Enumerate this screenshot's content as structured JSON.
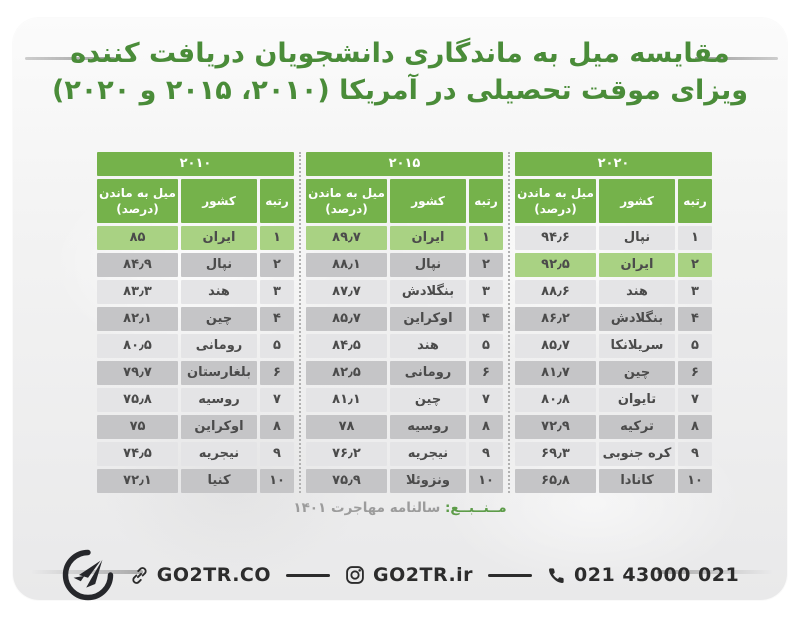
{
  "page": {
    "title_line1": "مقایسه میل به ماندگاری دانشجویان دریافت کننده",
    "title_line2": "ویزای موقت تحصیلی در آمریکا (۲۰۱۰، ۲۰۱۵ و ۲۰۲۰)",
    "title_color": "#4a8c39",
    "header_green": "#75b24b",
    "highlight_green": "#a9d283",
    "row_light": "#e4e4e6",
    "row_dark": "#c5c5c7"
  },
  "source": {
    "label": "مــنــبــع:",
    "text": "سالنامه مهاجرت ۱۴۰۱"
  },
  "footer": {
    "website": "GO2TR.CO",
    "instagram": "GO2TR.ir",
    "phone": "021 43000 021",
    "icons": [
      "go2tr-logo",
      "link-icon",
      "instagram-icon",
      "phone-icon"
    ]
  },
  "chart_data": {
    "type": "table",
    "title": "مقایسه میل به ماندگاری دانشجویان دریافت کننده ویزای موقت تحصیلی در آمریکا (۲۰۱۰، ۲۰۱۵ و ۲۰۲۰)",
    "columns": [
      "رتبه",
      "کشور",
      "میل به ماندن (درصد)"
    ],
    "rank_header": "رتبه",
    "country_header": "کشور",
    "value_header_line1": "میل به ماندن",
    "value_header_line2": "(درصد)",
    "layout_note": "three year tables shown right-to-left: 2020, 2015, 2010",
    "tables": [
      {
        "year": "۲۰۲۰",
        "highlight_row_index": 1,
        "rows": [
          {
            "rank": "۱",
            "country": "نپال",
            "value": "۹۴٫۶"
          },
          {
            "rank": "۲",
            "country": "ایران",
            "value": "۹۲٫۵"
          },
          {
            "rank": "۳",
            "country": "هند",
            "value": "۸۸٫۶"
          },
          {
            "rank": "۴",
            "country": "بنگلادش",
            "value": "۸۶٫۲"
          },
          {
            "rank": "۵",
            "country": "سریلانکا",
            "value": "۸۵٫۷"
          },
          {
            "rank": "۶",
            "country": "چین",
            "value": "۸۱٫۷"
          },
          {
            "rank": "۷",
            "country": "تایوان",
            "value": "۸۰٫۸"
          },
          {
            "rank": "۸",
            "country": "ترکیه",
            "value": "۷۲٫۹"
          },
          {
            "rank": "۹",
            "country": "کره جنوبی",
            "value": "۶۹٫۳"
          },
          {
            "rank": "۱۰",
            "country": "کانادا",
            "value": "۶۵٫۸"
          }
        ]
      },
      {
        "year": "۲۰۱۵",
        "highlight_row_index": 0,
        "rows": [
          {
            "rank": "۱",
            "country": "ایران",
            "value": "۸۹٫۷"
          },
          {
            "rank": "۲",
            "country": "نپال",
            "value": "۸۸٫۱"
          },
          {
            "rank": "۳",
            "country": "بنگلادش",
            "value": "۸۷٫۷"
          },
          {
            "rank": "۴",
            "country": "اوکراین",
            "value": "۸۵٫۷"
          },
          {
            "rank": "۵",
            "country": "هند",
            "value": "۸۴٫۵"
          },
          {
            "rank": "۶",
            "country": "رومانی",
            "value": "۸۲٫۵"
          },
          {
            "rank": "۷",
            "country": "چین",
            "value": "۸۱٫۱"
          },
          {
            "rank": "۸",
            "country": "روسیه",
            "value": "۷۸"
          },
          {
            "rank": "۹",
            "country": "نیجریه",
            "value": "۷۶٫۲"
          },
          {
            "rank": "۱۰",
            "country": "ونزوئلا",
            "value": "۷۵٫۹"
          }
        ]
      },
      {
        "year": "۲۰۱۰",
        "highlight_row_index": 0,
        "rows": [
          {
            "rank": "۱",
            "country": "ایران",
            "value": "۸۵"
          },
          {
            "rank": "۲",
            "country": "نپال",
            "value": "۸۴٫۹"
          },
          {
            "rank": "۳",
            "country": "هند",
            "value": "۸۳٫۳"
          },
          {
            "rank": "۴",
            "country": "چین",
            "value": "۸۲٫۱"
          },
          {
            "rank": "۵",
            "country": "رومانی",
            "value": "۸۰٫۵"
          },
          {
            "rank": "۶",
            "country": "بلغارستان",
            "value": "۷۹٫۷"
          },
          {
            "rank": "۷",
            "country": "روسیه",
            "value": "۷۵٫۸"
          },
          {
            "rank": "۸",
            "country": "اوکراین",
            "value": "۷۵"
          },
          {
            "rank": "۹",
            "country": "نیجریه",
            "value": "۷۴٫۵"
          },
          {
            "rank": "۱۰",
            "country": "کنیا",
            "value": "۷۲٫۱"
          }
        ]
      }
    ]
  }
}
